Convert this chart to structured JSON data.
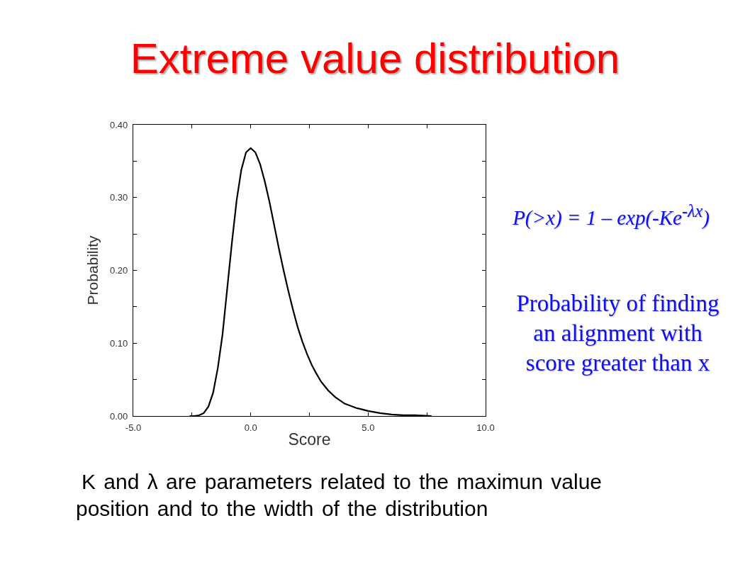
{
  "chart_data": {
    "type": "line",
    "title": "Extreme value distribution",
    "xlabel": "Score",
    "ylabel": "Probability",
    "annotations": [
      "P(>x) = 1 – exp(-Ke$^{-λx}$)",
      "Probability of finding an alignment with score greater than x",
      "K and λ are parameters related to the maximun value position and to the width of the distribution"
    ],
    "x": [
      -2.6,
      -2.4,
      -2.2,
      -2.0,
      -1.8,
      -1.6,
      -1.4,
      -1.2,
      -1.0,
      -0.8,
      -0.6,
      -0.4,
      -0.2,
      0.0,
      0.2,
      0.4,
      0.6,
      0.8,
      1.0,
      1.2,
      1.4,
      1.6,
      1.8,
      2.0,
      2.2,
      2.4,
      2.6,
      2.8,
      3.0,
      3.3,
      3.6,
      4.0,
      4.5,
      5.0,
      5.5,
      6.0,
      6.5,
      7.0,
      7.7
    ],
    "values": [
      0.0,
      0.0,
      0.001,
      0.004,
      0.013,
      0.032,
      0.066,
      0.112,
      0.175,
      0.238,
      0.296,
      0.338,
      0.362,
      0.368,
      0.362,
      0.346,
      0.322,
      0.294,
      0.262,
      0.23,
      0.2,
      0.172,
      0.146,
      0.122,
      0.102,
      0.085,
      0.07,
      0.058,
      0.047,
      0.035,
      0.026,
      0.017,
      0.011,
      0.007,
      0.004,
      0.002,
      0.001,
      0.001,
      0.0
    ],
    "color": "#000000",
    "xlim": [
      -5,
      10
    ],
    "xticks": [
      {
        "value": -5,
        "label": "-5.0"
      },
      {
        "value": -2.5,
        "label": null
      },
      {
        "value": 0,
        "label": "0.0"
      },
      {
        "value": 2.5,
        "label": null
      },
      {
        "value": 5,
        "label": "5.0"
      },
      {
        "value": 7.5,
        "label": null
      },
      {
        "value": 10,
        "label": "10.0"
      }
    ],
    "ylim": [
      0,
      0.4
    ],
    "yticks": [
      {
        "value": 0,
        "label": "0.00"
      },
      {
        "value": 0.05,
        "label": null
      },
      {
        "value": 0.1,
        "label": "0.10"
      },
      {
        "value": 0.15,
        "label": null
      },
      {
        "value": 0.2,
        "label": "0.20"
      },
      {
        "value": 0.25,
        "label": null
      },
      {
        "value": 0.3,
        "label": "0.30"
      },
      {
        "value": 0.35,
        "label": null
      },
      {
        "value": 0.4,
        "label": "0.40"
      }
    ],
    "grid": false
  }
}
